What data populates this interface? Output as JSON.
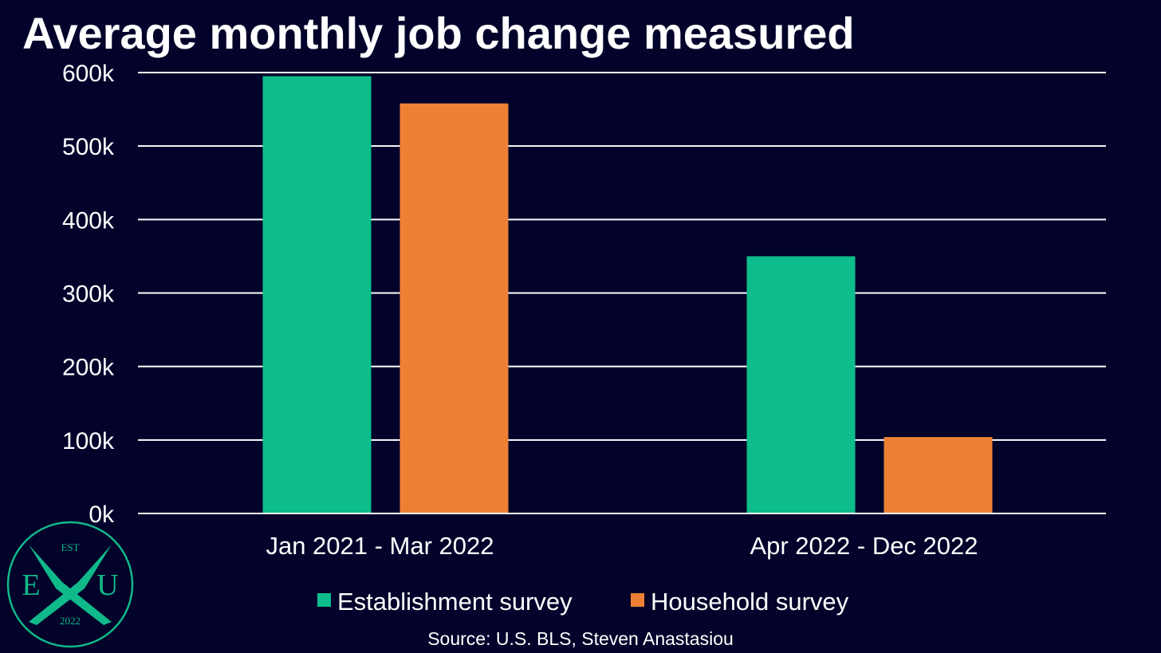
{
  "colors": {
    "background": "#02022a",
    "grid": "#ffffff",
    "text": "#ffffff",
    "logo": "#10b98a"
  },
  "logo": {
    "top": "EST",
    "left": "E",
    "center": "X",
    "right": "U",
    "bottom": "2022"
  },
  "source": "Source: U.S. BLS, Steven Anastasiou",
  "chart_data": {
    "type": "bar",
    "title": "Average monthly job change measured",
    "xlabel": "",
    "ylabel": "",
    "categories": [
      "Jan 2021 - Mar 2022",
      "Apr 2022 - Dec 2022"
    ],
    "series": [
      {
        "name": "Establishment survey",
        "color": "#0dbd8c",
        "values": [
          595,
          350
        ]
      },
      {
        "name": "Household survey",
        "color": "#ee8035",
        "values": [
          558,
          104
        ]
      }
    ],
    "ylim": [
      0,
      600
    ],
    "yticks": [
      0,
      100,
      200,
      300,
      400,
      500,
      600
    ],
    "ytick_labels": [
      "0k",
      "100k",
      "200k",
      "300k",
      "400k",
      "500k",
      "600k"
    ],
    "grid": true,
    "legend": "bottom"
  }
}
